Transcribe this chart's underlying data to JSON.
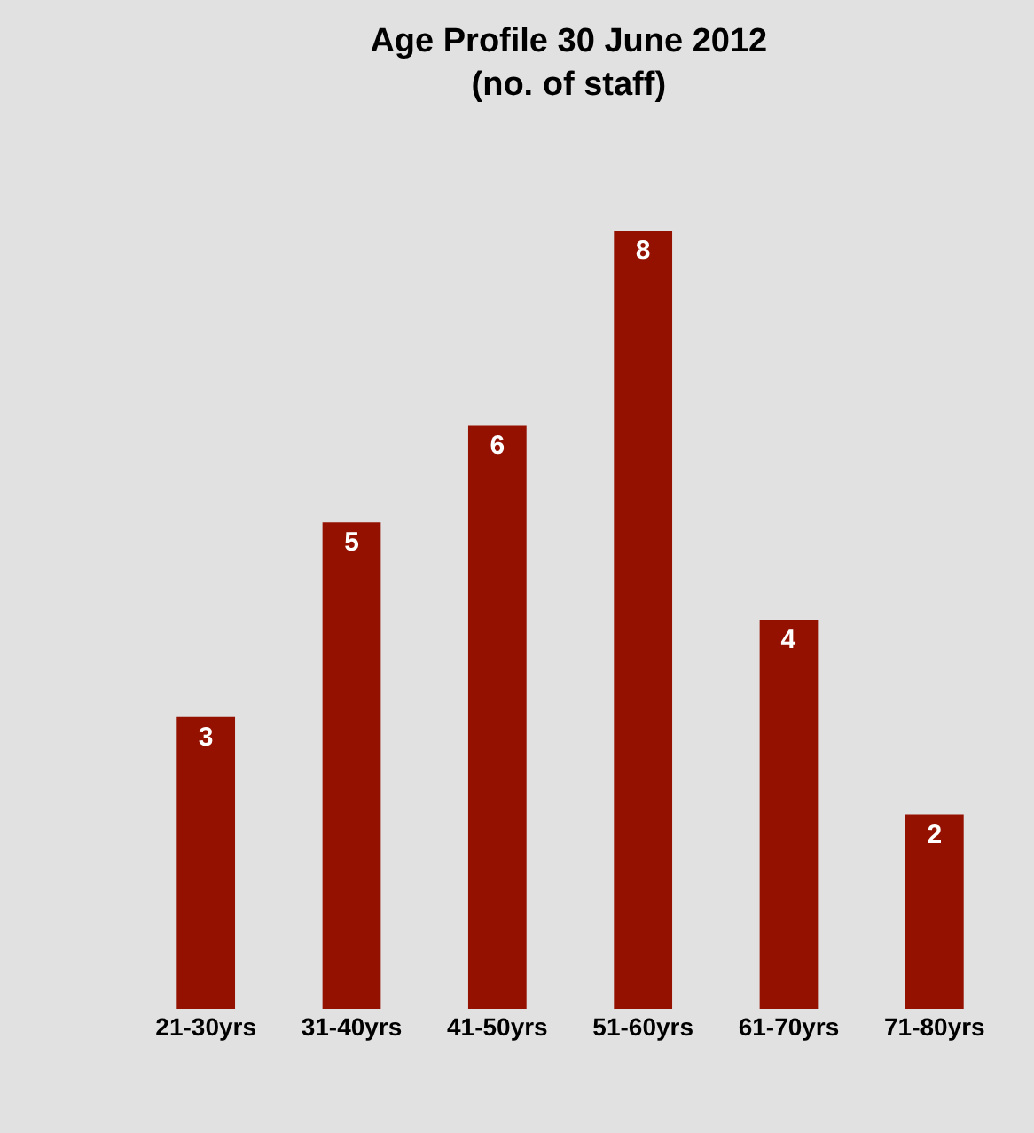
{
  "chart_data": {
    "type": "bar",
    "title": "Age Profile 30 June 2012\n(no. of staff)",
    "categories": [
      "21-30yrs",
      "31-40yrs",
      "41-50yrs",
      "51-60yrs",
      "61-70yrs",
      "71-80yrs"
    ],
    "values": [
      3,
      5,
      6,
      8,
      4,
      2
    ],
    "color": "#941100",
    "data_labels": true,
    "grid": false,
    "legend": false,
    "tick_labels": "x"
  }
}
